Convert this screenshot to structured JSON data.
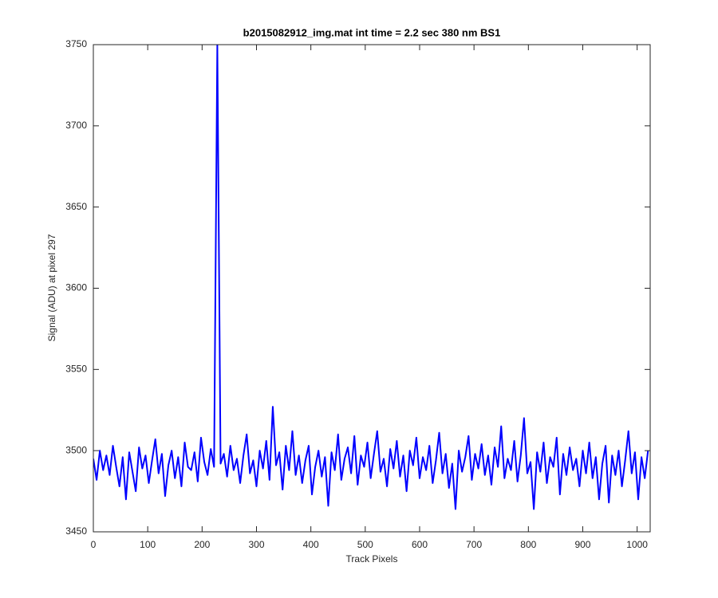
{
  "chart_data": {
    "type": "line",
    "title": "b2015082912_img.mat int time = 2.2 sec  380 nm BS1",
    "xlabel": "Track Pixels",
    "ylabel": "Signal (ADU) at pixel 297",
    "color": "#0000ff",
    "x": [
      0,
      6,
      12,
      18,
      24,
      30,
      36,
      42,
      48,
      54,
      60,
      66,
      72,
      78,
      84,
      90,
      96,
      102,
      108,
      114,
      120,
      126,
      132,
      138,
      144,
      150,
      156,
      162,
      168,
      174,
      180,
      186,
      192,
      198,
      204,
      210,
      216,
      222,
      228,
      234,
      240,
      246,
      252,
      258,
      264,
      270,
      276,
      282,
      288,
      294,
      300,
      306,
      312,
      318,
      324,
      330,
      336,
      342,
      348,
      354,
      360,
      366,
      372,
      378,
      384,
      390,
      396,
      402,
      408,
      414,
      420,
      426,
      432,
      438,
      444,
      450,
      456,
      462,
      468,
      474,
      480,
      486,
      492,
      498,
      504,
      510,
      516,
      522,
      528,
      534,
      540,
      546,
      552,
      558,
      564,
      570,
      576,
      582,
      588,
      594,
      600,
      606,
      612,
      618,
      624,
      630,
      636,
      642,
      648,
      654,
      660,
      666,
      672,
      678,
      684,
      690,
      696,
      702,
      708,
      714,
      720,
      726,
      732,
      738,
      744,
      750,
      756,
      762,
      768,
      774,
      780,
      786,
      792,
      798,
      804,
      810,
      816,
      822,
      828,
      834,
      840,
      846,
      852,
      858,
      864,
      870,
      876,
      882,
      888,
      894,
      900,
      906,
      912,
      918,
      924,
      930,
      936,
      942,
      948,
      954,
      960,
      966,
      972,
      978,
      984,
      990,
      996,
      1002,
      1008,
      1014,
      1020
    ],
    "values": [
      3495,
      3482,
      3500,
      3488,
      3497,
      3485,
      3503,
      3490,
      3478,
      3496,
      3470,
      3499,
      3487,
      3475,
      3502,
      3489,
      3497,
      3480,
      3494,
      3507,
      3486,
      3498,
      3472,
      3491,
      3500,
      3483,
      3496,
      3478,
      3505,
      3490,
      3488,
      3499,
      3481,
      3508,
      3493,
      3485,
      3501,
      3490,
      3750,
      3492,
      3498,
      3484,
      3503,
      3488,
      3495,
      3480,
      3497,
      3510,
      3486,
      3494,
      3478,
      3500,
      3489,
      3506,
      3482,
      3527,
      3491,
      3499,
      3476,
      3503,
      3488,
      3512,
      3485,
      3497,
      3480,
      3494,
      3503,
      3473,
      3490,
      3500,
      3484,
      3496,
      3466,
      3499,
      3488,
      3510,
      3482,
      3495,
      3502,
      3486,
      3509,
      3479,
      3497,
      3490,
      3505,
      3483,
      3498,
      3512,
      3487,
      3495,
      3478,
      3501,
      3489,
      3506,
      3484,
      3497,
      3475,
      3500,
      3491,
      3508,
      3483,
      3496,
      3488,
      3503,
      3480,
      3494,
      3511,
      3486,
      3498,
      3477,
      3492,
      3464,
      3500,
      3487,
      3496,
      3509,
      3482,
      3498,
      3489,
      3504,
      3485,
      3497,
      3479,
      3502,
      3490,
      3515,
      3483,
      3495,
      3488,
      3506,
      3481,
      3497,
      3520,
      3486,
      3493,
      3464,
      3499,
      3487,
      3505,
      3480,
      3496,
      3490,
      3508,
      3473,
      3498,
      3485,
      3502,
      3488,
      3495,
      3478,
      3500,
      3486,
      3505,
      3483,
      3496,
      3470,
      3492,
      3503,
      3468,
      3497,
      3485,
      3500,
      3478,
      3494,
      3512,
      3486,
      3499,
      3470,
      3496,
      3483,
      3500
    ],
    "xlim": [
      0,
      1024
    ],
    "ylim": [
      3450,
      3750
    ],
    "xticks": [
      0,
      100,
      200,
      300,
      400,
      500,
      600,
      700,
      800,
      900,
      1000
    ],
    "yticks": [
      3450,
      3500,
      3550,
      3600,
      3650,
      3700,
      3750
    ]
  }
}
